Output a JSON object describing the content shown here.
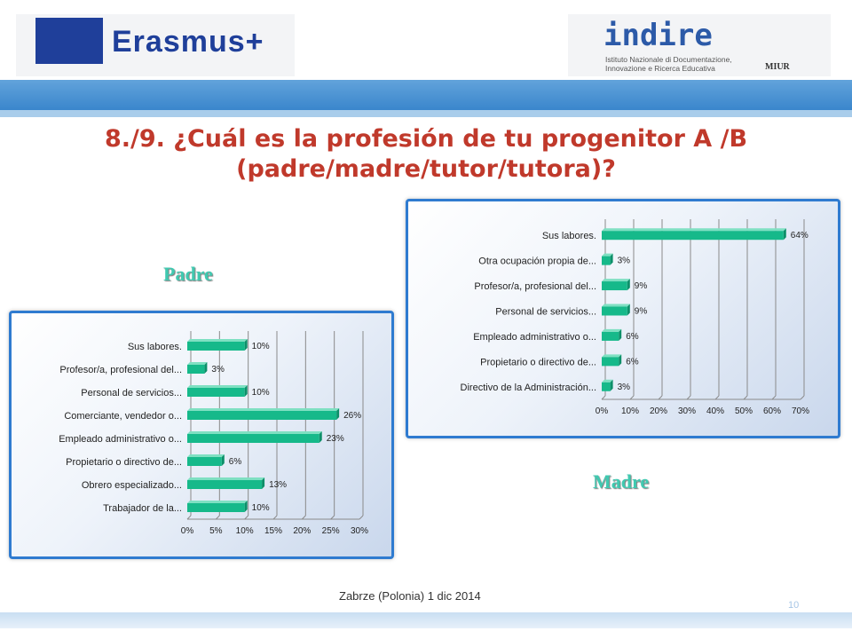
{
  "header": {
    "erasmus_text": "Erasmus+",
    "indire_text": "indire",
    "indire_subtitle": "Istituto Nazionale di Documentazione, Innovazione e Ricerca Educativa",
    "miur_text": "MIUR"
  },
  "title": {
    "line1": "8./9. ¿Cuál es la profesión de tu progenitor A /B",
    "line2": "(padre/madre/tutor/tutora)?"
  },
  "labels": {
    "padre": "Padre",
    "madre": "Madre"
  },
  "footer": {
    "text": "Zabrze (Polonia) 1 dic 2014",
    "page": "10"
  },
  "colors": {
    "bar": "#16b98a",
    "accent": "#40c9b0",
    "title": "#c0392b",
    "frame": "#2f7bd0"
  },
  "chart_data": [
    {
      "type": "bar",
      "orientation": "horizontal",
      "label": "Padre",
      "categories": [
        "Sus labores.",
        "Profesor/a, profesional del...",
        "Personal de servicios...",
        "Comerciante, vendedor o...",
        "Empleado administrativo o...",
        "Propietario o directivo de...",
        "Obrero especializado...",
        "Trabajador de la..."
      ],
      "values": [
        10,
        3,
        10,
        26,
        23,
        6,
        13,
        10
      ],
      "xlim": [
        0,
        30
      ],
      "xticks": [
        "0%",
        "5%",
        "10%",
        "15%",
        "20%",
        "25%",
        "30%"
      ]
    },
    {
      "type": "bar",
      "orientation": "horizontal",
      "label": "Madre",
      "categories": [
        "Sus labores.",
        "Otra ocupación propia de...",
        "Profesor/a, profesional del...",
        "Personal de servicios...",
        "Empleado administrativo o...",
        "Propietario o directivo de...",
        "Directivo de la Administración..."
      ],
      "values": [
        64,
        3,
        9,
        9,
        6,
        6,
        3
      ],
      "xlim": [
        0,
        70
      ],
      "xticks": [
        "0%",
        "10%",
        "20%",
        "30%",
        "40%",
        "50%",
        "60%",
        "70%"
      ]
    }
  ]
}
